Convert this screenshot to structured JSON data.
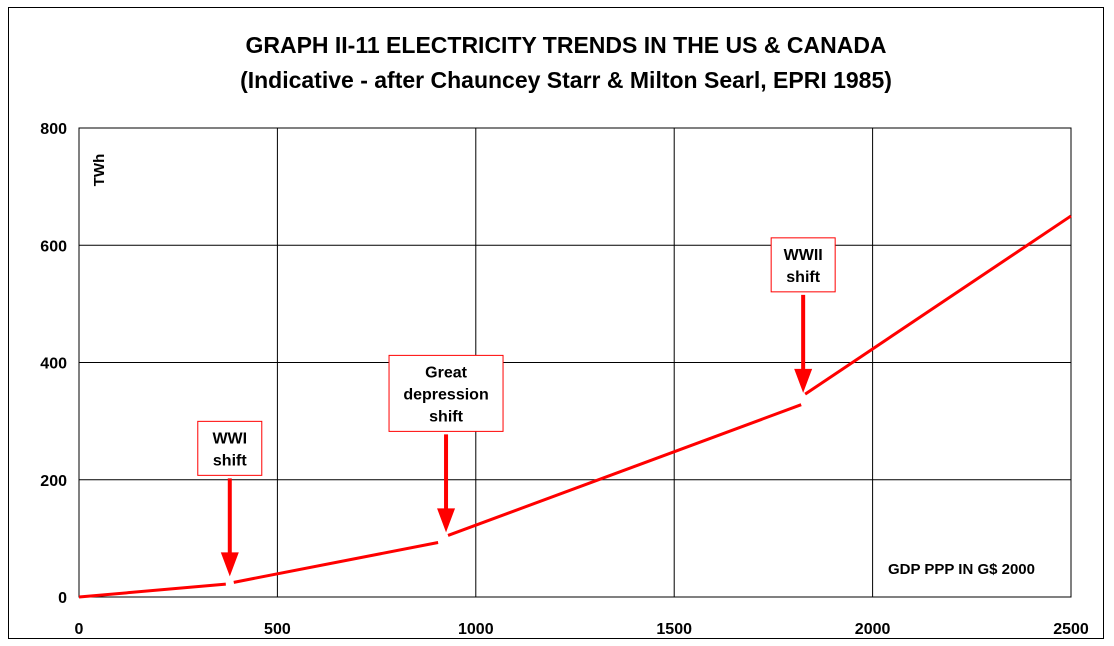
{
  "chart_data": {
    "type": "line",
    "title": "GRAPH II-11  ELECTRICITY TRENDS IN THE US & CANADA",
    "subtitle": "(Indicative - after Chauncey Starr & Milton Searl, EPRI 1985)",
    "xlabel": "GDP PPP IN G$ 2000",
    "ylabel": "TWh",
    "xlim": [
      0,
      2500
    ],
    "ylim": [
      0,
      800
    ],
    "x_ticks": [
      "0",
      "500",
      "1000",
      "1500",
      "2000",
      "2500"
    ],
    "y_ticks": [
      "0",
      "200",
      "400",
      "600",
      "800"
    ],
    "grid": true,
    "line_color": "#ff0000",
    "segments": [
      {
        "x": [
          0,
          370
        ],
        "y": [
          0,
          22
        ]
      },
      {
        "x": [
          390,
          905
        ],
        "y": [
          25,
          93
        ]
      },
      {
        "x": [
          930,
          1820
        ],
        "y": [
          105,
          328
        ]
      },
      {
        "x": [
          1830,
          2500
        ],
        "y": [
          346,
          650
        ]
      }
    ],
    "annotations": [
      {
        "lines": [
          "WWI",
          "shift"
        ],
        "x": 380,
        "y": 25
      },
      {
        "lines": [
          "Great",
          "depression",
          "shift"
        ],
        "x": 925,
        "y": 100
      },
      {
        "lines": [
          "WWII",
          "shift"
        ],
        "x": 1825,
        "y": 338
      }
    ]
  }
}
